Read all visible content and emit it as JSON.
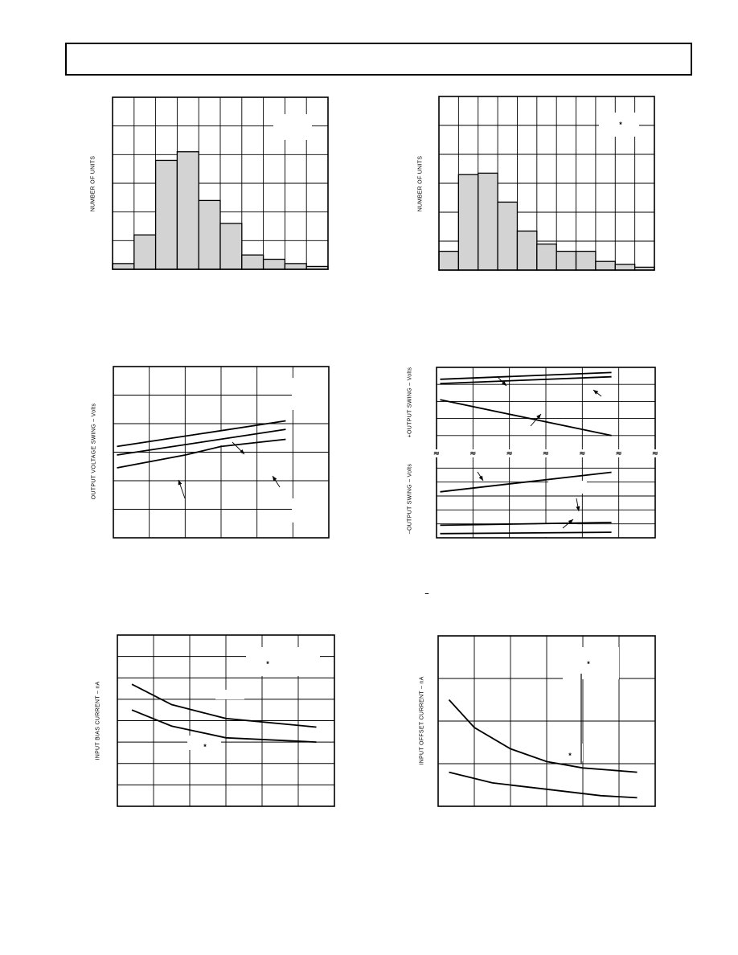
{
  "header": {
    "title": ""
  },
  "charts": [
    {
      "id": "histogram-1",
      "type": "bar",
      "ylabel": "NUMBER OF UNITS",
      "values": [
        2,
        12,
        38,
        41,
        24,
        16,
        5,
        3.5,
        2,
        1
      ],
      "ylim": [
        0,
        60
      ],
      "grid": true
    },
    {
      "id": "histogram-2",
      "type": "bar",
      "ylabel": "NUMBER OF UNITS",
      "marker": "*",
      "values": [
        6.5,
        33,
        33.5,
        23.5,
        13.5,
        9,
        6.5,
        6.5,
        3,
        2,
        1
      ],
      "ylim": [
        0,
        60
      ],
      "grid": true
    },
    {
      "id": "output-voltage-swing",
      "type": "line",
      "ylabel": "OUTPUT VOLTAGE SWING – Volts",
      "x": [
        0,
        5
      ],
      "series": [
        {
          "values": [
            [
              0.1,
              2.2
            ],
            [
              4.8,
              3.1
            ]
          ]
        },
        {
          "values": [
            [
              0.1,
              1.9
            ],
            [
              4.8,
              2.8
            ]
          ]
        },
        {
          "values": [
            [
              0.1,
              1.45
            ],
            [
              2.0,
              1.9
            ],
            [
              3.0,
              2.2
            ],
            [
              4.8,
              2.45
            ]
          ]
        }
      ],
      "xlim": [
        0,
        6
      ],
      "ylim": [
        -1,
        5
      ],
      "grid": true
    },
    {
      "id": "output-swing-split",
      "type": "line",
      "ylabel_top": "+OUTPUT SWING – Volts",
      "ylabel_bottom": "–OUTPUT SWING – Volts",
      "break_symbol": "≈",
      "minus_mark": "–",
      "series_top": [
        {
          "values": [
            [
              0.1,
              4.3
            ],
            [
              4.8,
              4.7
            ]
          ]
        },
        {
          "values": [
            [
              0.1,
              4.05
            ],
            [
              4.8,
              4.45
            ]
          ]
        },
        {
          "values": [
            [
              0.1,
              3.1
            ],
            [
              4.8,
              1.0
            ]
          ]
        }
      ],
      "series_bottom": [
        {
          "values": [
            [
              0.1,
              3.3
            ],
            [
              4.8,
              4.7
            ]
          ]
        },
        {
          "values": [
            [
              0.1,
              0.9
            ],
            [
              4.8,
              1.1
            ]
          ]
        },
        {
          "values": [
            [
              0.1,
              0.3
            ],
            [
              4.8,
              0.4
            ]
          ]
        }
      ],
      "xlim": [
        0,
        6
      ],
      "ylim_top": [
        0,
        5
      ],
      "ylim_bottom": [
        0,
        6
      ],
      "grid": true
    },
    {
      "id": "input-bias-current",
      "type": "line",
      "ylabel": "INPUT BIAS CURRENT – nA",
      "markers": [
        "*",
        "*"
      ],
      "series": [
        {
          "values": [
            [
              0.4,
              5.7
            ],
            [
              1.5,
              4.75
            ],
            [
              3.0,
              4.1
            ],
            [
              5.5,
              3.7
            ]
          ]
        },
        {
          "values": [
            [
              0.4,
              4.5
            ],
            [
              1.5,
              3.75
            ],
            [
              3.0,
              3.2
            ],
            [
              5.5,
              3.0
            ]
          ]
        }
      ],
      "xlim": [
        0,
        6
      ],
      "ylim": [
        0,
        8
      ],
      "grid": true
    },
    {
      "id": "input-offset-current",
      "type": "line",
      "ylabel": "INPUT OFFSET CURRENT – nA",
      "markers": [
        "*",
        "*"
      ],
      "series": [
        {
          "values": [
            [
              0.3,
              2.5
            ],
            [
              1.0,
              1.85
            ],
            [
              2.0,
              1.35
            ],
            [
              3.0,
              1.05
            ],
            [
              4.0,
              0.9
            ],
            [
              5.5,
              0.8
            ]
          ]
        },
        {
          "values": [
            [
              0.3,
              0.8
            ],
            [
              1.5,
              0.55
            ],
            [
              3.0,
              0.4
            ],
            [
              4.5,
              0.25
            ],
            [
              5.5,
              0.2
            ]
          ]
        }
      ],
      "xlim": [
        0,
        6
      ],
      "ylim": [
        0,
        4
      ],
      "grid": true
    }
  ]
}
